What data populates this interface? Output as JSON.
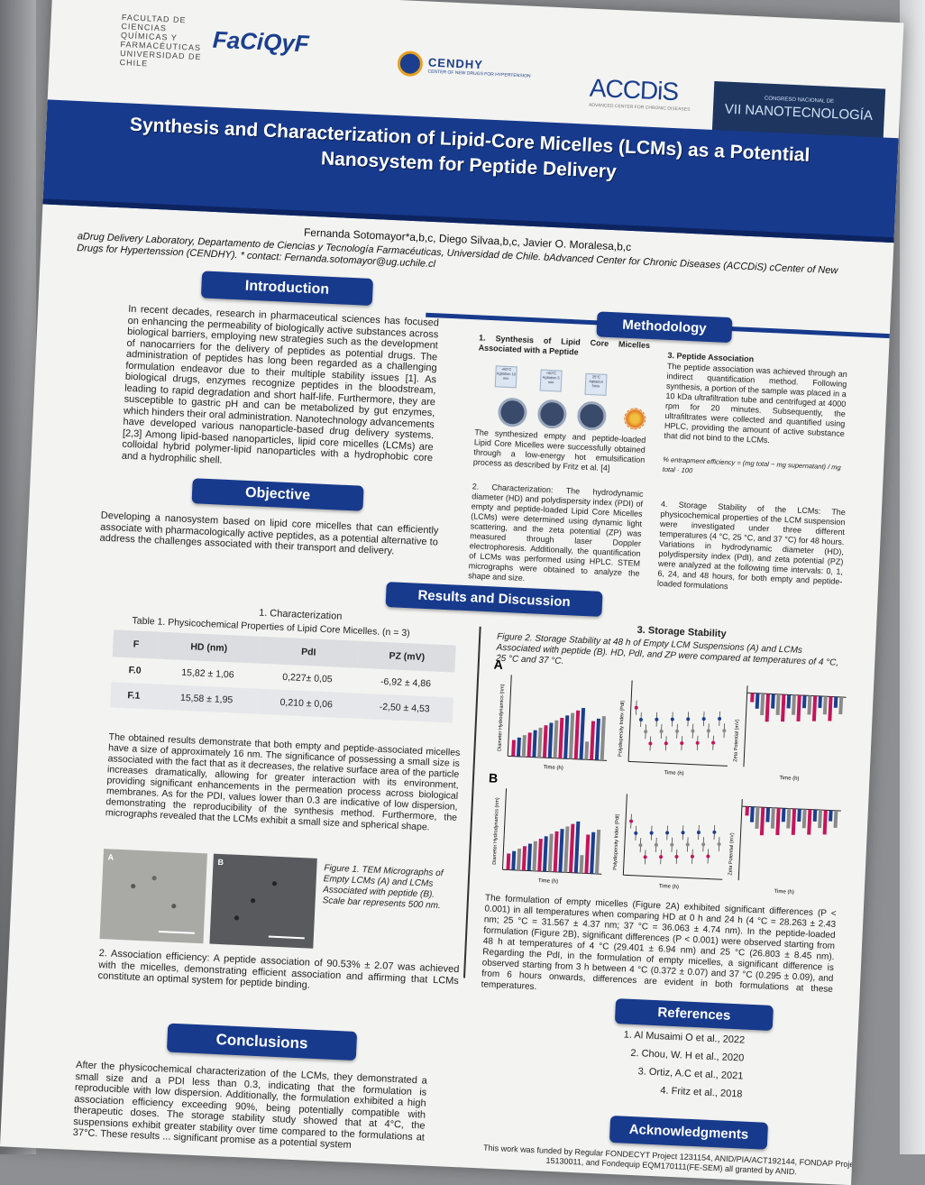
{
  "header": {
    "faculty_logo": "FACULTAD DE CIENCIAS QUÍMICAS Y FARMACÉUTICAS UNIVERSIDAD DE CHILE",
    "faciqyf": "FaCiQyF",
    "cendhy": "CENDHY",
    "cendhy_sub": "CENTER OF NEW DRUGS FOR HYPERTENSION",
    "accdis": "ACCDiS",
    "accdis_sub": "ADVANCED CENTER FOR CHRONIC DISEASES",
    "congress": "VII NANOTECNOLOGÍA",
    "congress_sub": "CONGRESO NACIONAL DE"
  },
  "title": "Synthesis and Characterization of Lipid-Core Micelles (LCMs) as a Potential Nanosystem for Peptide Delivery",
  "authors": "Fernanda Sotomayor*a,b,c, Diego Silvaa,b,c, Javier O. Moralesa,b,c",
  "affiliations": "aDrug Delivery Laboratory, Departamento de Ciencias y Tecnología Farmacéuticas, Universidad de Chile. bAdvanced Center for Chronic Diseases (ACCDiS) cCenter of New Drugs for Hypertenssion (CENDHY). * contact: Fernanda.sotomayor@ug.uchile.cl",
  "introduction": {
    "heading": "Introduction",
    "text": "In recent decades, research in pharmaceutical sciences has focused on enhancing the permeability of biologically active substances across biological barriers, employing new strategies such as the development of nanocarriers for the delivery of peptides as potential drugs. The administration of peptides has long been regarded as a challenging formulation endeavor due to their multiple stability issues [1]. As biological drugs, enzymes recognize peptides in the bloodstream, leading to rapid degradation and short half-life. Furthermore, they are susceptible to gastric pH and can be metabolized by gut enzymes, which hinders their oral administration. Nanotechnology advancements have developed various nanoparticle-based drug delivery systems. [2,3] Among lipid-based nanoparticles, lipid core micelles (LCMs) are colloidal hybrid polymer-lipid nanoparticles with a hydrophobic core and a hydrophilic shell."
  },
  "objective": {
    "heading": "Objective",
    "text": "Developing a nanosystem based on lipid core micelles that can efficiently associate with pharmacologically active peptides, as a potential alternative to address the challenges associated with their transport and delivery."
  },
  "methodology": {
    "heading": "Methodology",
    "step1_title": "1. Synthesis of Lipid Core Micelles Associated with a Peptide",
    "step1_text": "The synthesized empty and peptide-loaded Lipid Core Micelles were successfully obtained through a low-energy hot emulsification process as described by Fritz et al. [4]",
    "step2_text": "2. Characterization: The hydrodynamic diameter (HD) and polydispersity index (PDI) of empty and peptide-loaded Lipid Core Micelles (LCMs) were determined using dynamic light scattering, and the zeta potential (ZP) was measured through laser Doppler electrophoresis. Additionally, the quantification of LCMs was performed using HPLC. STEM micrographs were obtained to analyze the shape and size.",
    "step3_title": "3. Peptide Association",
    "step3_text": "The peptide association was achieved through an indirect quantification method. Following synthesis, a portion of the sample was placed in a 10 kDa ultrafiltration tube and centrifuged at 4000 rpm for 20 minutes. Subsequently, the ultrafiltrates were collected and quantified using HPLC, providing the amount of active substance that did not bind to the LCMs.",
    "formula": "% entrapment efficiency = (mg total − mg supernatant) / mg total · 100",
    "step4_text": "4. Storage Stability of the LCMs: The physicochemical properties of the LCM suspension were investigated under three different temperatures (4 °C, 25 °C, and 37 °C) for 48 hours. Variations in hydrodynamic diameter (HD), polydispersity index (PdI), and zeta potential (PZ) were analyzed at the following time intervals: 0, 1, 6, 24, and 48 hours, for both empty and peptide-loaded formulations",
    "chips": [
      "+80°C Agitation 10 min",
      "+80°C Agitation 5 min",
      "25°C Agitation 5min"
    ],
    "chip_labels": [
      "Lipid components",
      "Peptide",
      "Cold water"
    ]
  },
  "results": {
    "heading": "Results and Discussion",
    "char_title": "1. Characterization",
    "table_caption": "Table 1. Physicochemical Properties of Lipid Core Micelles. (n = 3)",
    "table_headers": [
      "F",
      "HD (nm)",
      "PdI",
      "PZ (mV)"
    ],
    "table_rows": [
      [
        "F.0",
        "15,82 ± 1,06",
        "0,227± 0,05",
        "-6,92 ± 4,86"
      ],
      [
        "F.1",
        "15,58 ± 1,95",
        "0,210 ± 0,06",
        "-2,50 ± 4,53"
      ]
    ],
    "char_text": "The obtained results demonstrate that both empty and peptide-associated micelles have a size of approximately 16 nm. The significance of possessing a small size is associated with the fact that as it decreases, the relative surface area of the particle increases dramatically, allowing for greater interaction with its environment, providing significant enhancements in the permeation process across biological membranes. As for the PDI, values lower than 0.3 are indicative of low dispersion, demonstrating the reproducibility of the synthesis method. Furthermore, the micrographs revealed that the LCMs exhibit a small size and spherical shape.",
    "fig1_caption": "Figure 1. TEM Micrographs of Empty LCMs (A) and LCMs Associated with peptide (B). Scale bar represents 500 nm.",
    "assoc_text": "2. Association efficiency: A peptide association of 90.53% ± 2.07 was achieved with the micelles, demonstrating efficient association and affirming that LCMs constitute an optimal system for peptide binding.",
    "storage_title": "3. Storage Stability",
    "fig2_caption": "Figure 2. Storage Stability at 48 h of Empty LCM Suspensions (A) and LCMs Associated with peptide (B). HD, PdI, and ZP were compared at temperatures of 4 °C, 25 °C and 37 °C.",
    "panel_a": "A",
    "panel_b": "B",
    "axis_hd": "Diameter Hydrodynamics (nm)",
    "axis_pdi": "Polydispersity Index (PdI)",
    "axis_zp": "Zeta Potential (mV)",
    "axis_time": "Time (h)",
    "storage_text": "The formulation of empty micelles (Figure 2A) exhibited significant differences (P < 0.001) in all temperatures when comparing HD at 0 h and 24 h (4 °C = 28.263 ± 2.43 nm; 25 °C = 31.567 ± 4.37 nm; 37 °C = 36.063 ± 4.74 nm). In the peptide-loaded formulation (Figure 2B), significant differences (P < 0.001) were observed starting from 48 h at temperatures of 4 °C (29.401 ± 6.94 nm) and 25 °C (26.803 ± 8.45 nm). Regarding the PdI, in the formulation of empty micelles, a significant difference is observed starting from 3 h between 4 °C (0.372 ± 0.07) and 37 °C (0.295 ± 0.09), and from 6 hours onwards, differences are evident in both formulations at these temperatures."
  },
  "conclusions": {
    "heading": "Conclusions",
    "text": "After the physicochemical characterization of the LCMs, they demonstrated a small size and a PDI less than 0.3, indicating that the formulation is reproducible with low dispersion. Additionally, the formulation exhibited a high association efficiency exceeding 90%, being potentially compatible with therapeutic doses. The storage stability study showed that at 4°C, the suspensions exhibit greater stability over time compared to the formulations at 37°C. These results ... significant promise as a potential system"
  },
  "references": {
    "heading": "References",
    "items": [
      "1. Al Musaimi O et al., 2022",
      "2. Chou, W. H et al., 2020",
      "3. Ortiz, A.C et al., 2021",
      "4. Fritz et al., 2018"
    ]
  },
  "acknowledgments": {
    "heading": "Acknowledgments",
    "text": "This work was funded by Regular FONDECYT Project 1231154, ANID/PIA/ACT192144, FONDAP Project 15130011, and Fondequip EQM170111(FE-SEM) all granted by ANID."
  },
  "colors": {
    "navy": "#173a8d",
    "magenta": "#c4155c",
    "blue": "#1b3f8e",
    "gray": "#8a8a8a"
  },
  "icons": [
    "cendhy-heart-icon",
    "accdis-logo-icon",
    "beaker-icon",
    "micelle-icon"
  ]
}
